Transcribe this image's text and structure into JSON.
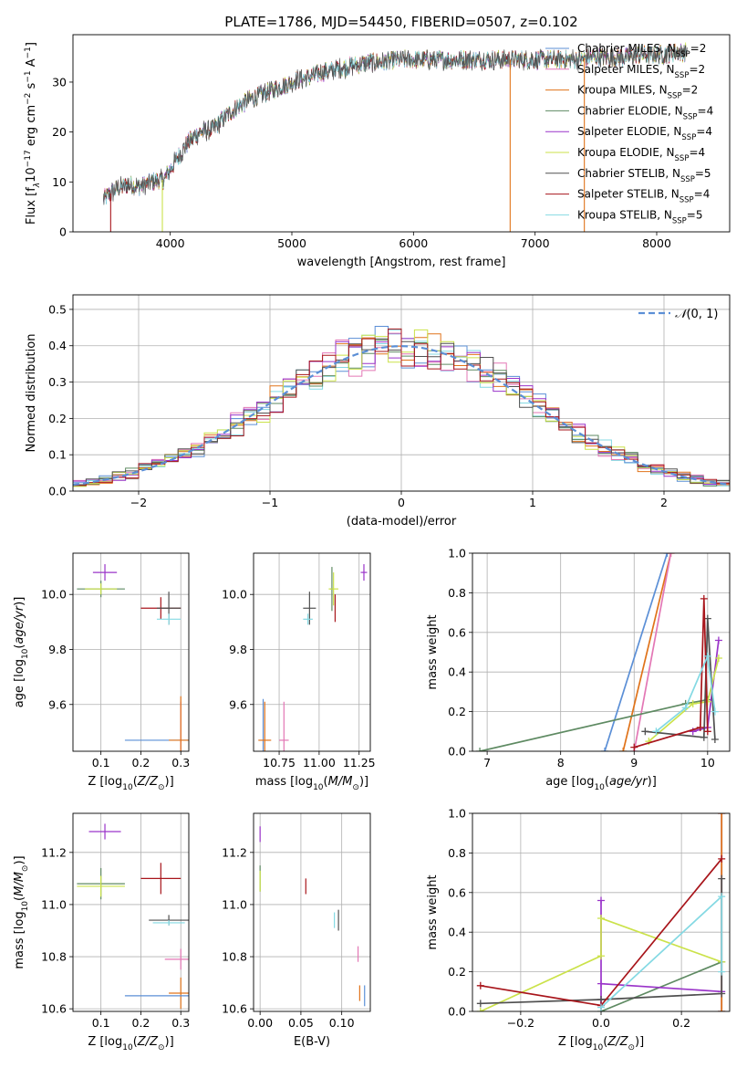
{
  "figure_title": "PLATE=1786, MJD=54450, FIBERID=0507, z=0.102",
  "colors": {
    "chabrier_miles": "#5b8fd6",
    "salpeter_miles": "#e377b5",
    "kroupa_miles": "#e0731a",
    "chabrier_elodie": "#5e8a62",
    "salpeter_elodie": "#9a34c9",
    "kroupa_elodie": "#cbe24a",
    "chabrier_stelib": "#505050",
    "salpeter_stelib": "#a8151b",
    "kroupa_stelib": "#84d9e3",
    "gaussian": "#5b8fd6",
    "grid": "#b0b0b0"
  },
  "legend_models": [
    {
      "key": "chabrier_miles",
      "text": "Chabrier MILES, N",
      "sub": "SSP",
      "tail": "=2"
    },
    {
      "key": "salpeter_miles",
      "text": "Salpeter MILES, N",
      "sub": "SSP",
      "tail": "=2"
    },
    {
      "key": "kroupa_miles",
      "text": "Kroupa MILES, N",
      "sub": "SSP",
      "tail": "=2"
    },
    {
      "key": "chabrier_elodie",
      "text": "Chabrier ELODIE, N",
      "sub": "SSP",
      "tail": "=4"
    },
    {
      "key": "salpeter_elodie",
      "text": "Salpeter ELODIE, N",
      "sub": "SSP",
      "tail": "=4"
    },
    {
      "key": "kroupa_elodie",
      "text": "Kroupa ELODIE, N",
      "sub": "SSP",
      "tail": "=4"
    },
    {
      "key": "chabrier_stelib",
      "text": "Chabrier STELIB, N",
      "sub": "SSP",
      "tail": "=5"
    },
    {
      "key": "salpeter_stelib",
      "text": "Salpeter STELIB, N",
      "sub": "SSP",
      "tail": "=4"
    },
    {
      "key": "kroupa_stelib",
      "text": "Kroupa STELIB, N",
      "sub": "SSP",
      "tail": "=5"
    }
  ],
  "chart_data": [
    {
      "id": "spectrum",
      "type": "line",
      "xlabel": "wavelength [Angstrom, rest frame]",
      "ylabel": "Flux [f",
      "xlim": [
        3200,
        8600
      ],
      "ylim": [
        0,
        39.5
      ],
      "xticks": [
        4000,
        5000,
        6000,
        7000,
        8000
      ],
      "yticks": [
        0,
        10,
        20,
        30
      ],
      "grid": false,
      "legend": "right",
      "continuum": {
        "x": [
          3450,
          3550,
          3650,
          3750,
          3850,
          3950,
          4050,
          4150,
          4250,
          4350,
          4450,
          4550,
          4650,
          4750,
          4850,
          4950,
          5050,
          5150,
          5250,
          5350,
          5450,
          5550,
          5650,
          5750,
          5850,
          5950,
          6050,
          6150,
          6250,
          6350,
          6450,
          6550,
          6650,
          6750,
          6850,
          6950,
          7050,
          7150,
          7250,
          7350,
          7450,
          7550,
          7650,
          7750,
          7850,
          7950,
          8050,
          8150,
          8250
        ],
        "y": [
          6.5,
          8.5,
          9.5,
          9.0,
          10.0,
          10.5,
          14.5,
          18.0,
          20.0,
          20.5,
          23.0,
          25.0,
          26.5,
          27.5,
          28.5,
          29.5,
          30.5,
          31.0,
          32.0,
          32.5,
          33.0,
          33.5,
          34.0,
          34.0,
          34.5,
          34.5,
          34.5,
          34.5,
          34.5,
          34.5,
          34.5,
          34.5,
          34.5,
          34.5,
          34.5,
          34.5,
          34.5,
          34.5,
          34.5,
          34.5,
          35.0,
          35.0,
          35.0,
          35.0,
          35.5,
          35.5,
          35.5,
          36.0,
          36.0
        ]
      },
      "dips": [
        {
          "x": 3510,
          "y": 0,
          "series": "salpeter_stelib"
        },
        {
          "x": 3935,
          "y": 0,
          "series": "kroupa_elodie"
        },
        {
          "x": 6795,
          "y": 0,
          "series": "kroupa_miles"
        },
        {
          "x": 7405,
          "y": 0,
          "series": "kroupa_miles"
        }
      ]
    },
    {
      "id": "residuals",
      "type": "histogram",
      "xlabel": "(data-model)/error",
      "ylabel": "Normed distribution",
      "xlim": [
        -2.5,
        2.5
      ],
      "ylim": [
        0,
        0.54
      ],
      "xticks": [
        -2,
        -1,
        0,
        1,
        2
      ],
      "yticks": [
        0.0,
        0.1,
        0.2,
        0.3,
        0.4,
        0.5
      ],
      "grid": true,
      "legend": "top-right",
      "gaussian_label": "(0, 1)",
      "bin_width": 0.1
    },
    {
      "id": "age_vs_Z",
      "type": "errorbar",
      "xlabel": "Z [log",
      "ylabel": "age  [log",
      "xlim": [
        0.03,
        0.32
      ],
      "ylim": [
        9.43,
        10.15
      ],
      "xticks": [
        0.1,
        0.2,
        0.3
      ],
      "yticks": [
        9.6,
        9.8,
        10.0
      ],
      "grid": true,
      "points": [
        {
          "key": "salpeter_elodie",
          "x": 0.11,
          "y": 10.08,
          "xerr": 0.03,
          "yerr": 0.03
        },
        {
          "key": "chabrier_elodie",
          "x": 0.1,
          "y": 10.02,
          "xerr": 0.06,
          "yerr": 0.03
        },
        {
          "key": "kroupa_elodie",
          "x": 0.1,
          "y": 10.02,
          "xerr": 0.04,
          "yerr": 0.02
        },
        {
          "key": "salpeter_stelib",
          "x": 0.25,
          "y": 9.95,
          "xerr": 0.05,
          "yerr": 0.04
        },
        {
          "key": "chabrier_stelib",
          "x": 0.27,
          "y": 9.95,
          "xerr": 0.03,
          "yerr": 0.06
        },
        {
          "key": "kroupa_stelib",
          "x": 0.27,
          "y": 9.91,
          "xerr": 0.03,
          "yerr": 0.02
        },
        {
          "key": "chabrier_miles",
          "x": 0.25,
          "y": 9.47,
          "xerr": 0.09,
          "yerr": 0.0
        },
        {
          "key": "salpeter_miles",
          "x": 0.3,
          "y": 9.47,
          "xerr": 0.0,
          "yerr": 0.14
        },
        {
          "key": "kroupa_miles",
          "x": 0.3,
          "y": 9.47,
          "xerr": 0.03,
          "yerr": 0.16
        }
      ]
    },
    {
      "id": "age_vs_mass",
      "type": "errorbar",
      "xlabel": "mass [log",
      "xlim": [
        10.59,
        11.32
      ],
      "ylim": [
        9.43,
        10.15
      ],
      "xticks": [
        10.75,
        11.0,
        11.25
      ],
      "yticks": [
        9.6,
        9.8,
        10.0
      ],
      "grid": true,
      "points": [
        {
          "key": "salpeter_elodie",
          "x": 11.28,
          "y": 10.08,
          "xerr": 0.02,
          "yerr": 0.03
        },
        {
          "key": "chabrier_elodie",
          "x": 11.08,
          "y": 10.02,
          "xerr": 0.01,
          "yerr": 0.08
        },
        {
          "key": "kroupa_elodie",
          "x": 11.09,
          "y": 10.02,
          "xerr": 0.03,
          "yerr": 0.06
        },
        {
          "key": "salpeter_stelib",
          "x": 11.1,
          "y": 9.95,
          "xerr": 0.0,
          "yerr": 0.05
        },
        {
          "key": "chabrier_stelib",
          "x": 10.94,
          "y": 9.95,
          "xerr": 0.04,
          "yerr": 0.06
        },
        {
          "key": "kroupa_stelib",
          "x": 10.93,
          "y": 9.91,
          "xerr": 0.03,
          "yerr": 0.02
        },
        {
          "key": "chabrier_miles",
          "x": 10.65,
          "y": 9.47,
          "xerr": 0.0,
          "yerr": 0.15
        },
        {
          "key": "kroupa_miles",
          "x": 10.66,
          "y": 9.47,
          "xerr": 0.04,
          "yerr": 0.14
        },
        {
          "key": "salpeter_miles",
          "x": 10.78,
          "y": 9.47,
          "xerr": 0.03,
          "yerr": 0.14
        }
      ]
    },
    {
      "id": "mass_weight_vs_age",
      "type": "line",
      "xlabel": "age  [log",
      "ylabel": "mass weight",
      "xlim": [
        6.8,
        10.3
      ],
      "ylim": [
        0.0,
        1.0
      ],
      "xticks": [
        7,
        8,
        9,
        10
      ],
      "yticks": [
        0.0,
        0.2,
        0.4,
        0.6,
        0.8,
        1.0
      ],
      "grid": true,
      "series": [
        {
          "key": "chabrier_miles",
          "x": [
            8.6,
            9.45
          ],
          "y": [
            0.0,
            1.0
          ]
        },
        {
          "key": "kroupa_miles",
          "x": [
            8.85,
            9.5
          ],
          "y": [
            0.0,
            1.0
          ]
        },
        {
          "key": "salpeter_miles",
          "x": [
            9.0,
            9.5
          ],
          "y": [
            0.0,
            1.0
          ]
        },
        {
          "key": "chabrier_elodie",
          "x": [
            6.9,
            9.7,
            10.0
          ],
          "y": [
            0.0,
            0.24,
            0.26
          ]
        },
        {
          "key": "salpeter_elodie",
          "x": [
            9.8,
            10.0,
            10.15
          ],
          "y": [
            0.1,
            0.12,
            0.56
          ]
        },
        {
          "key": "kroupa_elodie",
          "x": [
            9.2,
            9.8,
            10.0,
            10.15
          ],
          "y": [
            0.05,
            0.24,
            0.25,
            0.47
          ]
        },
        {
          "key": "chabrier_stelib",
          "x": [
            9.15,
            9.95,
            10.0,
            10.1
          ],
          "y": [
            0.1,
            0.07,
            0.67,
            0.06
          ]
        },
        {
          "key": "salpeter_stelib",
          "x": [
            9.0,
            9.9,
            9.95,
            10.0
          ],
          "y": [
            0.02,
            0.12,
            0.77,
            0.1
          ]
        },
        {
          "key": "kroupa_stelib",
          "x": [
            9.3,
            9.7,
            10.0,
            10.1
          ],
          "y": [
            0.1,
            0.22,
            0.48,
            0.2
          ]
        }
      ]
    },
    {
      "id": "mass_vs_Z",
      "type": "errorbar",
      "xlabel": "Z [log",
      "ylabel": "mass [log",
      "xlim": [
        0.03,
        0.32
      ],
      "ylim": [
        10.59,
        11.35
      ],
      "xticks": [
        0.1,
        0.2,
        0.3
      ],
      "yticks": [
        10.6,
        10.8,
        11.0,
        11.2
      ],
      "grid": true,
      "points": [
        {
          "key": "salpeter_elodie",
          "x": 0.11,
          "y": 11.28,
          "xerr": 0.04,
          "yerr": 0.03
        },
        {
          "key": "chabrier_elodie",
          "x": 0.1,
          "y": 11.08,
          "xerr": 0.06,
          "yerr": 0.06
        },
        {
          "key": "kroupa_elodie",
          "x": 0.1,
          "y": 11.07,
          "xerr": 0.06,
          "yerr": 0.04
        },
        {
          "key": "salpeter_stelib",
          "x": 0.25,
          "y": 11.1,
          "xerr": 0.05,
          "yerr": 0.06
        },
        {
          "key": "chabrier_stelib",
          "x": 0.27,
          "y": 10.94,
          "xerr": 0.05,
          "yerr": 0.02
        },
        {
          "key": "kroupa_stelib",
          "x": 0.27,
          "y": 10.93,
          "xerr": 0.04,
          "yerr": 0.01
        },
        {
          "key": "salpeter_miles",
          "x": 0.3,
          "y": 10.79,
          "xerr": 0.04,
          "yerr": 0.04
        },
        {
          "key": "kroupa_miles",
          "x": 0.3,
          "y": 10.66,
          "xerr": 0.03,
          "yerr": 0.06
        },
        {
          "key": "chabrier_miles",
          "x": 0.25,
          "y": 10.65,
          "xerr": 0.09,
          "yerr": 0.0
        }
      ]
    },
    {
      "id": "mass_vs_ebv",
      "type": "errorbar",
      "xlabel": "E(B-V)",
      "xlim": [
        -0.008,
        0.135
      ],
      "ylim": [
        10.59,
        11.35
      ],
      "xticks": [
        0.0,
        0.05,
        0.1
      ],
      "yticks": [
        10.6,
        10.8,
        11.0,
        11.2
      ],
      "grid": true,
      "points": [
        {
          "key": "salpeter_elodie",
          "x": 0.0,
          "y": 11.27,
          "xerr": 0.0,
          "yerr": 0.03
        },
        {
          "key": "chabrier_elodie",
          "x": 0.0,
          "y": 11.1,
          "xerr": 0.0,
          "yerr": 0.05
        },
        {
          "key": "kroupa_elodie",
          "x": 0.0,
          "y": 11.09,
          "xerr": 0.0,
          "yerr": 0.04
        },
        {
          "key": "salpeter_stelib",
          "x": 0.056,
          "y": 11.07,
          "xerr": 0.0,
          "yerr": 0.03
        },
        {
          "key": "kroupa_stelib",
          "x": 0.091,
          "y": 10.94,
          "xerr": 0.0,
          "yerr": 0.03
        },
        {
          "key": "chabrier_stelib",
          "x": 0.096,
          "y": 10.94,
          "xerr": 0.0,
          "yerr": 0.04
        },
        {
          "key": "salpeter_miles",
          "x": 0.12,
          "y": 10.81,
          "xerr": 0.0,
          "yerr": 0.03
        },
        {
          "key": "kroupa_miles",
          "x": 0.122,
          "y": 10.66,
          "xerr": 0.0,
          "yerr": 0.03
        },
        {
          "key": "chabrier_miles",
          "x": 0.128,
          "y": 10.65,
          "xerr": 0.0,
          "yerr": 0.04
        }
      ]
    },
    {
      "id": "mass_weight_vs_Z",
      "type": "line",
      "xlabel": "Z [log",
      "ylabel": "mass weight",
      "xlim": [
        -0.32,
        0.32
      ],
      "ylim": [
        0.0,
        1.0
      ],
      "xticks": [
        -0.2,
        0.0,
        0.2
      ],
      "yticks": [
        0.0,
        0.2,
        0.4,
        0.6,
        0.8,
        1.0
      ],
      "grid": true,
      "series": [
        {
          "key": "chabrier_miles",
          "x": [
            0.3,
            0.3
          ],
          "y": [
            0.0,
            1.0
          ]
        },
        {
          "key": "salpeter_miles",
          "x": [
            0.3,
            0.3
          ],
          "y": [
            0.0,
            1.0
          ]
        },
        {
          "key": "kroupa_miles",
          "x": [
            0.3,
            0.3
          ],
          "y": [
            0.0,
            1.0
          ]
        },
        {
          "key": "chabrier_elodie",
          "x": [
            0.0,
            0.3
          ],
          "y": [
            0.0,
            0.25
          ]
        },
        {
          "key": "salpeter_elodie",
          "x": [
            0.0,
            0.0,
            0.0,
            0.3
          ],
          "y": [
            0.56,
            0.03,
            0.14,
            0.1
          ]
        },
        {
          "key": "kroupa_elodie",
          "x": [
            -0.3,
            0.0,
            0.0,
            0.3
          ],
          "y": [
            0.0,
            0.28,
            0.47,
            0.25
          ]
        },
        {
          "key": "chabrier_stelib",
          "x": [
            -0.3,
            0.0,
            0.3,
            0.3
          ],
          "y": [
            0.04,
            0.06,
            0.09,
            0.67
          ]
        },
        {
          "key": "salpeter_stelib",
          "x": [
            -0.3,
            0.0,
            0.3
          ],
          "y": [
            0.13,
            0.03,
            0.77
          ]
        },
        {
          "key": "kroupa_stelib",
          "x": [
            0.0,
            0.3,
            0.3
          ],
          "y": [
            0.02,
            0.58,
            0.2
          ]
        }
      ]
    }
  ]
}
